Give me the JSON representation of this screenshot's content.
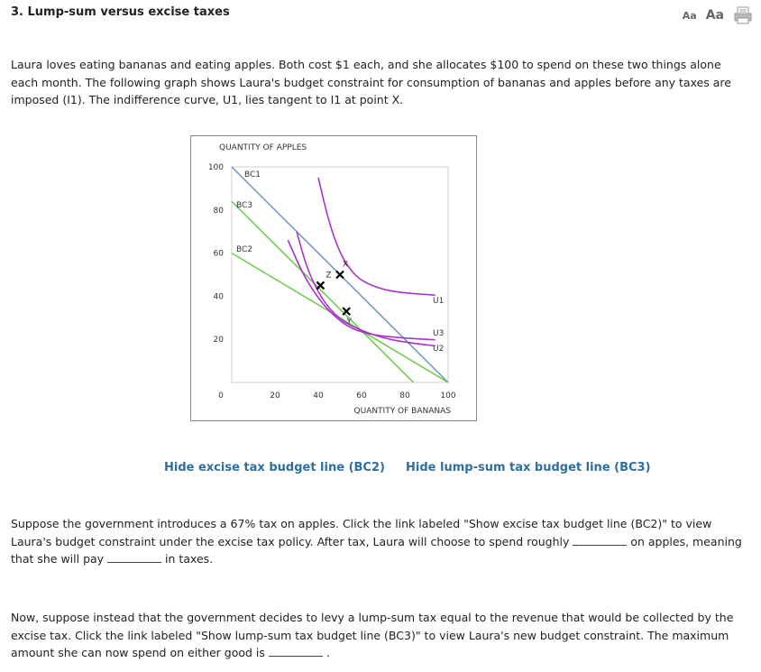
{
  "header": {
    "title": "3. Lump-sum versus excise taxes",
    "font_small_label": "Aa",
    "font_large_label": "Aa",
    "print_icon": "printer-icon"
  },
  "intro": "Laura loves eating bananas and eating apples. Both cost $1 each, and she allocates $100 to spend on these two things alone each month. The following graph shows Laura's budget constraint for consumption of bananas and apples before any taxes are imposed (I1). The indifference curve, U1, lies tangent to I1 at point X.",
  "chart_data": {
    "type": "line",
    "ylabel": "QUANTITY OF APPLES",
    "xlabel": "QUANTITY OF BANANAS",
    "xlim": [
      0,
      100
    ],
    "ylim": [
      0,
      100
    ],
    "x_ticks": [
      "0",
      "20",
      "40",
      "60",
      "80",
      "100"
    ],
    "y_ticks": [
      "100",
      "80",
      "60",
      "40",
      "20"
    ],
    "budget_lines": [
      {
        "name": "BC1",
        "color": "#6a96c4",
        "points": [
          [
            0,
            100
          ],
          [
            100,
            0
          ]
        ]
      },
      {
        "name": "BC3",
        "color": "#66cc44",
        "points": [
          [
            0,
            84
          ],
          [
            84,
            0
          ]
        ]
      },
      {
        "name": "BC2",
        "color": "#66cc44",
        "points": [
          [
            0,
            60
          ],
          [
            100,
            0
          ]
        ]
      }
    ],
    "curves": [
      {
        "name": "U1",
        "color": "#aa33cc",
        "points": [
          [
            40,
            95
          ],
          [
            45,
            74
          ],
          [
            50,
            60
          ],
          [
            55,
            52
          ],
          [
            60,
            47
          ],
          [
            70,
            43
          ],
          [
            80,
            41.5
          ],
          [
            94,
            40.5
          ]
        ]
      },
      {
        "name": "U3",
        "color": "#aa33cc",
        "points": [
          [
            26,
            66
          ],
          [
            33,
            50
          ],
          [
            40,
            39
          ],
          [
            47,
            31
          ],
          [
            55,
            25
          ],
          [
            65,
            22
          ],
          [
            80,
            20.5
          ],
          [
            94,
            19.8
          ]
        ]
      },
      {
        "name": "U2",
        "color": "#aa33cc",
        "points": [
          [
            30,
            70
          ],
          [
            35,
            52
          ],
          [
            42,
            38
          ],
          [
            50,
            29
          ],
          [
            60,
            24
          ],
          [
            72,
            20
          ],
          [
            85,
            18
          ],
          [
            94,
            17
          ]
        ]
      }
    ],
    "points": [
      {
        "name": "X",
        "x": 50,
        "y": 50
      },
      {
        "name": "Z",
        "x": 41,
        "y": 45
      },
      {
        "name": "Y",
        "x": 53,
        "y": 33
      }
    ]
  },
  "links": {
    "hide_bc2": "Hide excise tax budget line (BC2)",
    "hide_bc3": "Hide lump-sum tax budget line (BC3)"
  },
  "q2": {
    "part1": "Suppose the government introduces a 67% tax on apples. Click the link labeled \"Show excise tax budget line (BC2)\" to view Laura's budget constraint under the excise tax policy. After tax, Laura will choose to spend roughly",
    "part2": "on apples, meaning that she will pay",
    "part3": "in taxes."
  },
  "q3": {
    "part1": "Now, suppose instead that the government decides to levy a lump-sum tax equal to the revenue that would be collected by the excise tax. Click the link labeled \"Show lump-sum tax budget line (BC3)\" to view Laura's new budget constraint. The maximum amount she can now spend on either good is",
    "part2": "."
  }
}
